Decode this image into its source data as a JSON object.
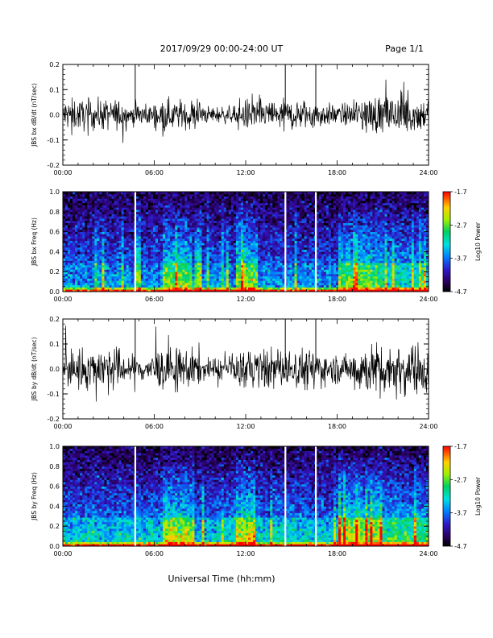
{
  "header": {
    "date_range": "2017/09/29  00:00-24:00 UT",
    "page": "Page 1/1"
  },
  "x_axis": {
    "label": "Universal Time (hh:mm)",
    "ticks": [
      "00:00",
      "06:00",
      "12:00",
      "18:00",
      "24:00"
    ]
  },
  "colorbar": {
    "label": "Log10 Power",
    "ticks": [
      "-1.7",
      "-2.7",
      "-3.7",
      "-4.7"
    ]
  },
  "chart_data": [
    {
      "type": "line",
      "ylabel": "JBS bx dB/dt (nT/sec)",
      "xlim": [
        0,
        24
      ],
      "ylim": [
        -0.2,
        0.2
      ],
      "yticks": [
        "0.2",
        "0.1",
        "0.0",
        "-0.1",
        "-0.2"
      ],
      "spikes_hours": [
        4.75,
        14.6,
        16.6
      ],
      "noise_amplitude_nT_per_sec": 0.03
    },
    {
      "type": "heatmap",
      "ylabel": "JBS bx Freq (Hz)",
      "xlim": [
        0,
        24
      ],
      "ylim": [
        0,
        1.0
      ],
      "yticks": [
        "1.0",
        "0.8",
        "0.6",
        "0.4",
        "0.2",
        "0.0"
      ],
      "color_range_log10": [
        -4.7,
        -1.7
      ],
      "data_gaps_hours": [
        4.75,
        14.6,
        16.6
      ]
    },
    {
      "type": "line",
      "ylabel": "JBS by dB/dt (nT/sec)",
      "xlim": [
        0,
        24
      ],
      "ylim": [
        -0.2,
        0.2
      ],
      "yticks": [
        "0.2",
        "0.1",
        "0.0",
        "-0.1",
        "-0.2"
      ],
      "spikes_hours": [
        4.75,
        14.6,
        16.6
      ],
      "noise_amplitude_nT_per_sec": 0.04
    },
    {
      "type": "heatmap",
      "ylabel": "JBS by Freq (Hz)",
      "xlim": [
        0,
        24
      ],
      "ylim": [
        0,
        1.0
      ],
      "yticks": [
        "1.0",
        "0.8",
        "0.6",
        "0.4",
        "0.2",
        "0.0"
      ],
      "color_range_log10": [
        -4.7,
        -1.7
      ],
      "data_gaps_hours": [
        4.75,
        14.6,
        16.6
      ]
    }
  ]
}
